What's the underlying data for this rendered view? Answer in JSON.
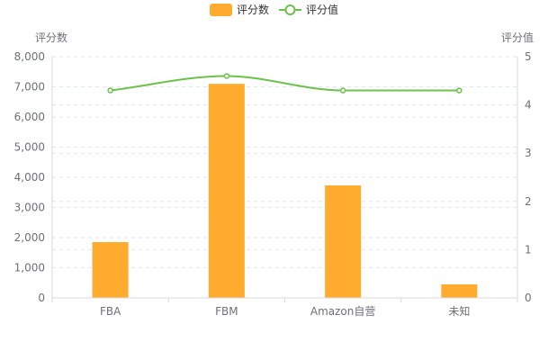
{
  "chart_data": {
    "type": "bar",
    "categories": [
      "FBA",
      "FBM",
      "Amazon自营",
      "未知"
    ],
    "series": [
      {
        "name": "评分数",
        "type": "bar",
        "axis": "left",
        "color": "#FFAB2E",
        "values": [
          1850,
          7100,
          3730,
          450
        ]
      },
      {
        "name": "评分值",
        "type": "line",
        "axis": "right",
        "color": "#6CC24A",
        "smooth": true,
        "values": [
          4.3,
          4.6,
          4.3,
          4.3
        ]
      }
    ],
    "ylabel_left": "评分数",
    "ylabel_right": "评分值",
    "ylim_left": [
      0,
      8000
    ],
    "ylim_right": [
      0,
      5
    ],
    "yticks_left": [
      "0",
      "1,000",
      "2,000",
      "3,000",
      "4,000",
      "5,000",
      "6,000",
      "7,000",
      "8,000"
    ],
    "yticks_right": [
      "0",
      "1",
      "2",
      "3",
      "4",
      "5"
    ],
    "grid": "dashed",
    "legend": "top-center"
  }
}
